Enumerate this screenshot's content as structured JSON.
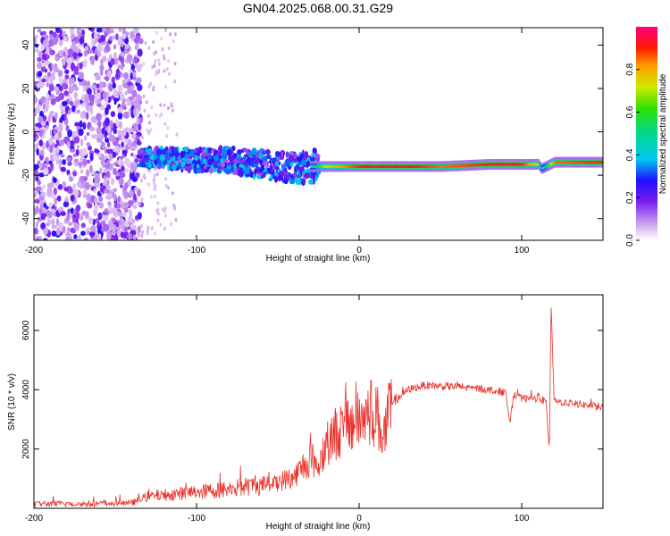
{
  "page": {
    "title": "GN04.2025.068.00.31.G29"
  },
  "chart_data": [
    {
      "type": "heatmap",
      "xlabel": "Height of straight line (km)",
      "ylabel": "Frequency (Hz)",
      "xlim": [
        -200,
        150
      ],
      "ylim": [
        -50,
        48
      ],
      "xticks": [
        -200,
        -100,
        0,
        100
      ],
      "xtick_labels": [
        "-200",
        "-100",
        "0",
        "100"
      ],
      "yticks": [
        -40,
        -20,
        0,
        20,
        40
      ],
      "ytick_labels": [
        "-40",
        "-20",
        "0",
        "20",
        "40"
      ],
      "colorbar": {
        "label": "Normalized spectral amplitude",
        "range": [
          0,
          1
        ],
        "ticks": [
          0.0,
          0.2,
          0.4,
          0.6,
          0.8
        ],
        "tick_labels": [
          "0.0",
          "0.2",
          "0.4",
          "0.6",
          "0.8"
        ]
      },
      "ridge": {
        "x": [
          -135,
          -120,
          -100,
          -80,
          -60,
          -40,
          -30,
          -20,
          0,
          20,
          50,
          80,
          90,
          100,
          110,
          112,
          120,
          150
        ],
        "y": [
          -12,
          -12,
          -13,
          -13,
          -15,
          -17,
          -16,
          -16,
          -16,
          -16,
          -16,
          -15,
          -15,
          -15,
          -15,
          -17,
          -14,
          -14
        ],
        "amplitude": [
          0.25,
          0.3,
          0.3,
          0.3,
          0.3,
          0.35,
          0.45,
          0.75,
          0.9,
          0.95,
          0.85,
          0.9,
          0.95,
          0.9,
          0.7,
          0.4,
          0.85,
          0.9
        ]
      }
    },
    {
      "type": "line",
      "xlabel": "Height of straight line (km)",
      "ylabel": "SNR (10 * v/v)",
      "xlim": [
        -200,
        150
      ],
      "ylim": [
        0,
        7200
      ],
      "xticks": [
        -200,
        -100,
        0,
        100
      ],
      "xtick_labels": [
        "-200",
        "-100",
        "0",
        "100"
      ],
      "yticks": [
        2000,
        4000,
        6000
      ],
      "ytick_labels": [
        "2000",
        "4000",
        "6000"
      ],
      "series": [
        {
          "color": "#e8302a",
          "x": [
            -200,
            -180,
            -160,
            -140,
            -130,
            -120,
            -100,
            -80,
            -60,
            -50,
            -40,
            -30,
            -25,
            -20,
            -10,
            0,
            10,
            15,
            20,
            30,
            40,
            60,
            80,
            90,
            93,
            95,
            100,
            110,
            115,
            117,
            118,
            120,
            130,
            150
          ],
          "y": [
            150,
            150,
            150,
            180,
            400,
            450,
            550,
            650,
            800,
            900,
            1050,
            1700,
            1400,
            2300,
            2700,
            3000,
            3300,
            2400,
            3500,
            4000,
            4150,
            4100,
            4000,
            3900,
            2900,
            3800,
            3700,
            3700,
            3600,
            1800,
            6900,
            3600,
            3550,
            3400
          ]
        }
      ]
    }
  ]
}
